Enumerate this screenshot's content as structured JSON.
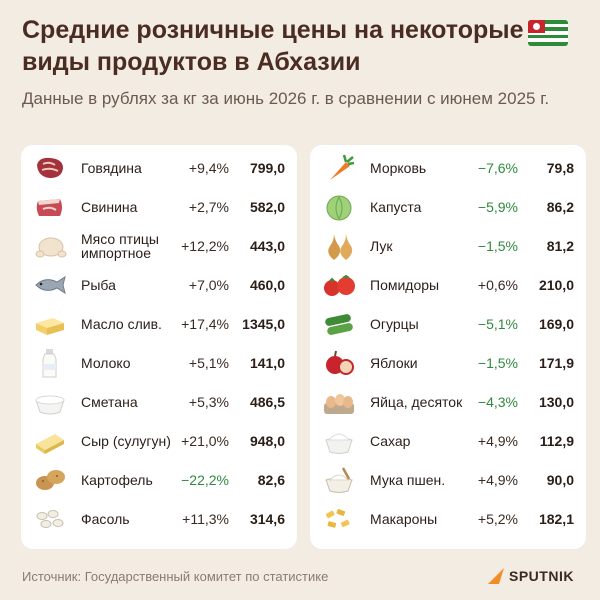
{
  "header": {
    "title": "Средние розничные цены на некоторые виды продуктов в Абхазии",
    "subtitle": "Данные в рублях за кг за июнь 2026 г. в сравнении с июнем 2025 г."
  },
  "left_items": [
    {
      "icon": "beef-icon",
      "name": "Говядина",
      "change": "+9,4%",
      "price": "799,0"
    },
    {
      "icon": "pork-icon",
      "name": "Свинина",
      "change": "+2,7%",
      "price": "582,0"
    },
    {
      "icon": "chicken-icon",
      "name": "Мясо птицы импортное",
      "change": "+12,2%",
      "price": "443,0"
    },
    {
      "icon": "fish-icon",
      "name": "Рыба",
      "change": "+7,0%",
      "price": "460,0"
    },
    {
      "icon": "butter-icon",
      "name": "Масло слив.",
      "change": "+17,4%",
      "price": "1345,0"
    },
    {
      "icon": "milk-icon",
      "name": "Молоко",
      "change": "+5,1%",
      "price": "141,0"
    },
    {
      "icon": "sour-cream-icon",
      "name": "Сметана",
      "change": "+5,3%",
      "price": "486,5"
    },
    {
      "icon": "cheese-icon",
      "name": "Сыр (сулугун)",
      "change": "+21,0%",
      "price": "948,0"
    },
    {
      "icon": "potato-icon",
      "name": "Картофель",
      "change": "−22,2%",
      "price": "82,6"
    },
    {
      "icon": "beans-icon",
      "name": "Фасоль",
      "change": "+11,3%",
      "price": "314,6"
    }
  ],
  "right_items": [
    {
      "icon": "carrot-icon",
      "name": "Морковь",
      "change": "−7,6%",
      "price": "79,8"
    },
    {
      "icon": "cabbage-icon",
      "name": "Капуста",
      "change": "−5,9%",
      "price": "86,2"
    },
    {
      "icon": "onion-icon",
      "name": "Лук",
      "change": "−1,5%",
      "price": "81,2"
    },
    {
      "icon": "tomato-icon",
      "name": "Помидоры",
      "change": "+0,6%",
      "price": "210,0"
    },
    {
      "icon": "cucumber-icon",
      "name": "Огурцы",
      "change": "−5,1%",
      "price": "169,0"
    },
    {
      "icon": "apple-icon",
      "name": "Яблоки",
      "change": "−1,5%",
      "price": "171,9"
    },
    {
      "icon": "eggs-icon",
      "name": "Яйца, десяток",
      "change": "−4,3%",
      "price": "130,0"
    },
    {
      "icon": "sugar-icon",
      "name": "Сахар",
      "change": "+4,9%",
      "price": "112,9"
    },
    {
      "icon": "flour-icon",
      "name": "Мука пшен.",
      "change": "+4,9%",
      "price": "90,0"
    },
    {
      "icon": "pasta-icon",
      "name": "Макароны",
      "change": "+5,2%",
      "price": "182,1"
    }
  ],
  "footer": {
    "source": "Источник: Государственный комитет по статистике",
    "brand": "SPUTNIK"
  },
  "colors": {
    "positive": "#3a2a22",
    "negative": "#2f8a3d",
    "title": "#4a2c23",
    "background": "#f3ece2"
  }
}
